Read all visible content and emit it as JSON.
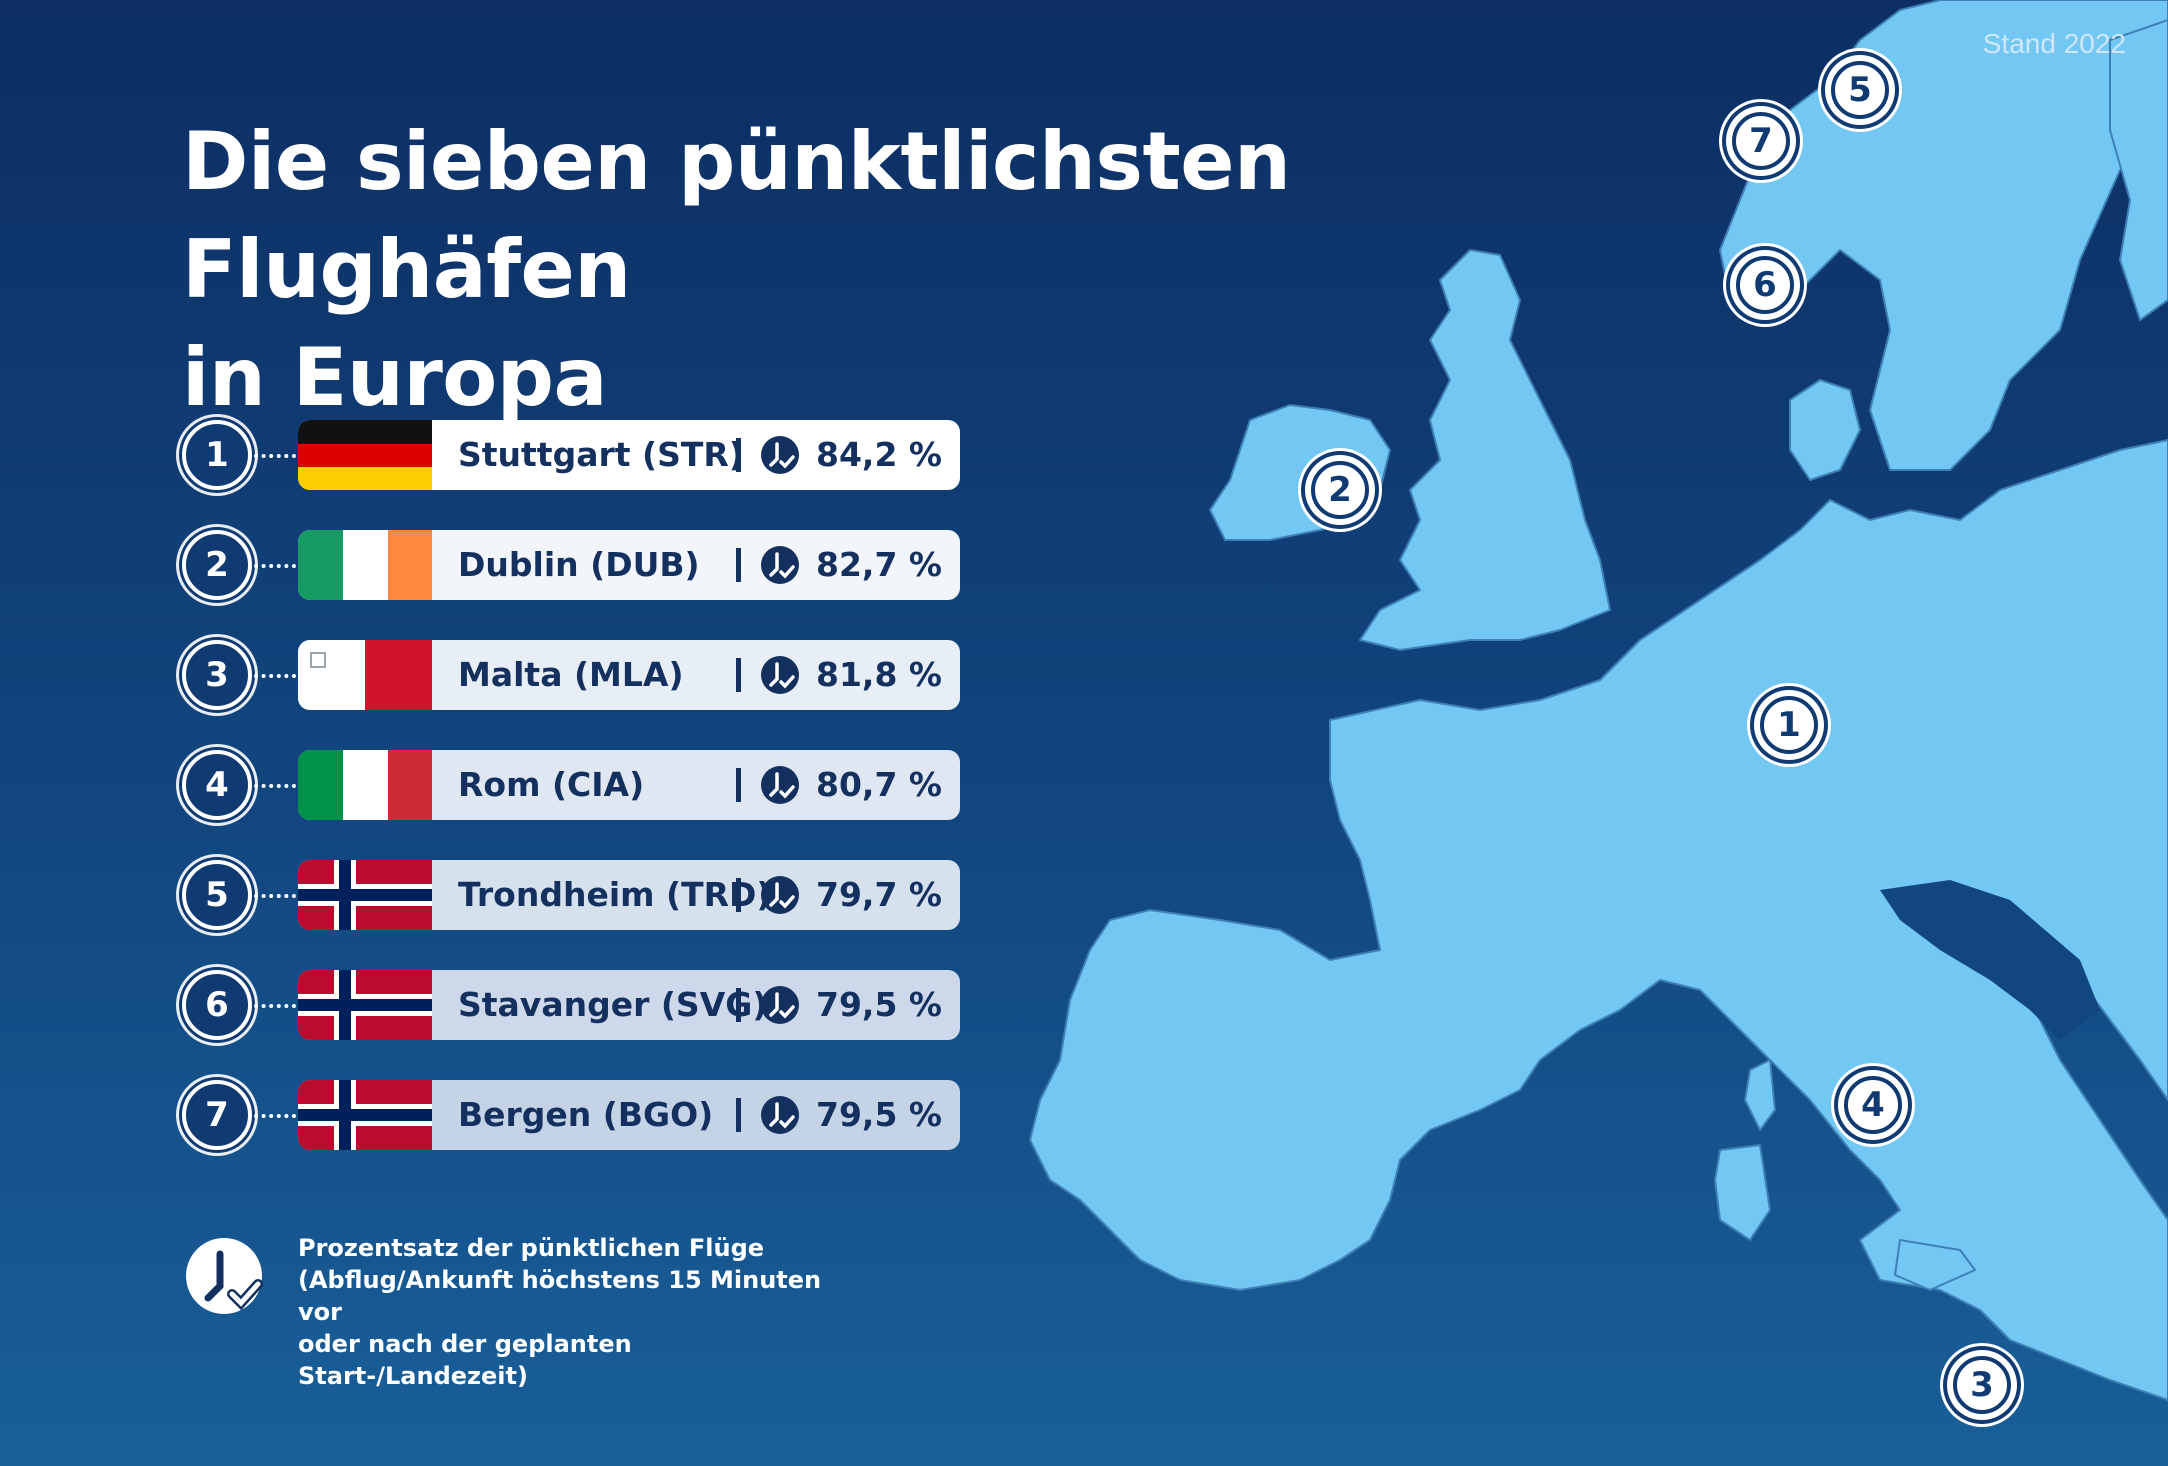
{
  "stand": "Stand 2022",
  "title": {
    "line1": "Die sieben pünktlichsten Flughäfen",
    "line2": "in Europa"
  },
  "airports": [
    {
      "rank": "1",
      "city": "Stuttgart (STR)",
      "percent": "84,2 %",
      "flag": "germany-flag"
    },
    {
      "rank": "2",
      "city": "Dublin (DUB)",
      "percent": "82,7 %",
      "flag": "ireland-flag"
    },
    {
      "rank": "3",
      "city": "Malta (MLA)",
      "percent": "81,8 %",
      "flag": "malta-flag"
    },
    {
      "rank": "4",
      "city": "Rom (CIA)",
      "percent": "80,7 %",
      "flag": "italy-flag"
    },
    {
      "rank": "5",
      "city": "Trondheim (TRD)",
      "percent": "79,7 %",
      "flag": "norway-flag"
    },
    {
      "rank": "6",
      "city": "Stavanger (SVG)",
      "percent": "79,5 %",
      "flag": "norway-flag"
    },
    {
      "rank": "7",
      "city": "Bergen (BGO)",
      "percent": "79,5 %",
      "flag": "norway-flag"
    }
  ],
  "legend": {
    "line1": "Prozentsatz der pünktlichen Flüge",
    "line2": "(Abflug/Ankunft höchstens 15 Minuten vor",
    "line3": "oder nach der geplanten Start-/Landezeit)"
  },
  "map_markers": [
    "1",
    "2",
    "3",
    "4",
    "5",
    "6",
    "7"
  ],
  "colors": {
    "background_top": "#0c2e63",
    "background_bottom": "#195f99",
    "land": "#72c8f3",
    "ink": "#13305f"
  }
}
